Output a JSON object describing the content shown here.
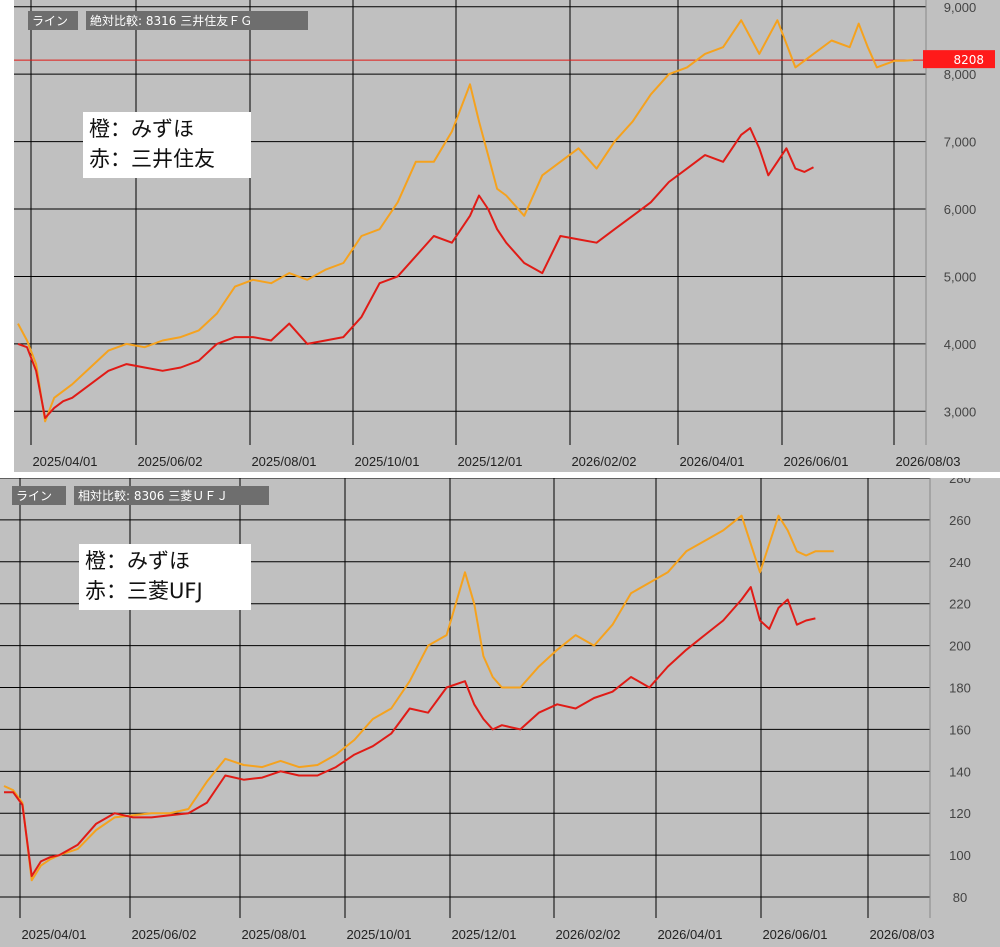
{
  "colors": {
    "background": "#c0c0c0",
    "mizuho": "#f5a21e",
    "compare": "#e01b16",
    "grid": "#000000",
    "price_line": "#e01b16",
    "price_tag": "#ff1a1a"
  },
  "chart_data": [
    {
      "type": "line",
      "header": {
        "mode": "ライン",
        "title": "絶対比較: 8316 三井住友ＦＧ"
      },
      "legend": {
        "line1": "橙：みずほ",
        "line2": "赤：三井住友"
      },
      "ylim": [
        2500,
        9100
      ],
      "yticks": [
        3000,
        4000,
        5000,
        6000,
        7000,
        8000,
        9000
      ],
      "ytick_labels": [
        "3,000",
        "4,000",
        "5,000",
        "6,000",
        "7,000",
        "8,000",
        "9,000"
      ],
      "xticks": [
        "2025/04/01",
        "2025/06/02",
        "2025/08/01",
        "2025/10/01",
        "2025/12/01",
        "2026/02/02",
        "2026/04/01",
        "2026/06/01",
        "2026/08/03"
      ],
      "current_price": 8208,
      "current_price_label": "8208",
      "x_range": [
        0,
        100
      ],
      "series": [
        {
          "name": "橙：みずほ",
          "key": "mizuho",
          "x": [
            0,
            1,
            2,
            3,
            4,
            5,
            6,
            8,
            10,
            12,
            14,
            16,
            18,
            20,
            22,
            24,
            26,
            28,
            30,
            32,
            34,
            36,
            38,
            40,
            42,
            44,
            46,
            48,
            50,
            51,
            52,
            53,
            54,
            56,
            58,
            60,
            62,
            64,
            66,
            68,
            70,
            72,
            74,
            76,
            78,
            80,
            82,
            84,
            86,
            88,
            90,
            92,
            93,
            94,
            95,
            96,
            97,
            98,
            99
          ],
          "values": [
            4300,
            4050,
            3700,
            2850,
            3200,
            3300,
            3400,
            3650,
            3900,
            4000,
            3950,
            4050,
            4100,
            4200,
            4450,
            4850,
            4950,
            4900,
            5050,
            4950,
            5100,
            5200,
            5600,
            5700,
            6100,
            6700,
            6700,
            7150,
            7850,
            7300,
            6800,
            6300,
            6200,
            5900,
            6500,
            6700,
            6900,
            6600,
            7000,
            7300,
            7700,
            8000,
            8100,
            8300,
            8400,
            8800,
            8300,
            8800,
            8100,
            8300,
            8500,
            8400,
            8750,
            8400,
            8100,
            8150,
            8200,
            8200,
            8208
          ]
        },
        {
          "name": "赤：三井住友",
          "key": "smfg",
          "x": [
            0,
            1,
            2,
            3,
            4,
            5,
            6,
            8,
            10,
            12,
            14,
            16,
            18,
            20,
            22,
            24,
            26,
            28,
            30,
            32,
            34,
            36,
            38,
            40,
            42,
            44,
            46,
            48,
            50,
            51,
            52,
            53,
            54,
            56,
            58,
            60,
            62,
            64,
            66,
            68,
            70,
            72,
            74,
            76,
            78,
            80,
            81,
            82,
            83,
            84,
            85,
            86,
            87,
            88
          ],
          "values": [
            4000,
            3950,
            3600,
            2900,
            3050,
            3150,
            3200,
            3400,
            3600,
            3700,
            3650,
            3600,
            3650,
            3750,
            4000,
            4100,
            4100,
            4050,
            4300,
            4000,
            4050,
            4100,
            4400,
            4900,
            5000,
            5300,
            5600,
            5500,
            5900,
            6200,
            6000,
            5700,
            5500,
            5200,
            5050,
            5600,
            5550,
            5500,
            5700,
            5900,
            6100,
            6400,
            6600,
            6800,
            6700,
            7100,
            7200,
            6900,
            6500,
            6700,
            6900,
            6600,
            6550,
            6620
          ]
        }
      ]
    },
    {
      "type": "line",
      "header": {
        "mode": "ライン",
        "title": "相対比較: 8306 三菱ＵＦＪ"
      },
      "legend": {
        "line1": "橙：みずほ",
        "line2": "赤：三菱UFJ"
      },
      "ylim": [
        70,
        280
      ],
      "yticks": [
        80,
        100,
        120,
        140,
        160,
        180,
        200,
        220,
        240,
        260,
        280
      ],
      "ytick_labels": [
        "80",
        "100",
        "120",
        "140",
        "160",
        "180",
        "200",
        "220",
        "240",
        "260",
        "280"
      ],
      "xticks": [
        "2025/04/01",
        "2025/06/02",
        "2025/08/01",
        "2025/10/01",
        "2025/12/01",
        "2026/02/02",
        "2026/04/01",
        "2026/06/01",
        "2026/08/03"
      ],
      "x_range": [
        0,
        100
      ],
      "series": [
        {
          "name": "橙：みずほ",
          "key": "mizuho",
          "x": [
            0,
            1,
            2,
            3,
            4,
            5,
            6,
            8,
            10,
            12,
            14,
            16,
            18,
            20,
            22,
            24,
            26,
            28,
            30,
            32,
            34,
            36,
            38,
            40,
            42,
            44,
            46,
            48,
            50,
            51,
            52,
            53,
            54,
            56,
            58,
            60,
            62,
            64,
            66,
            68,
            70,
            72,
            74,
            76,
            78,
            80,
            82,
            84,
            85,
            86,
            87,
            88,
            89,
            90
          ],
          "values": [
            133,
            131,
            125,
            88,
            95,
            98,
            100,
            103,
            112,
            118,
            119,
            120,
            120,
            122,
            135,
            146,
            143,
            142,
            145,
            142,
            143,
            148,
            155,
            165,
            170,
            183,
            200,
            205,
            235,
            220,
            195,
            185,
            180,
            180,
            190,
            198,
            205,
            200,
            210,
            225,
            230,
            235,
            245,
            250,
            255,
            262,
            235,
            262,
            255,
            245,
            243,
            245,
            245,
            245
          ]
        },
        {
          "name": "赤：三菱UFJ",
          "key": "mufg",
          "x": [
            0,
            1,
            2,
            3,
            4,
            5,
            6,
            8,
            10,
            12,
            14,
            16,
            18,
            20,
            22,
            24,
            26,
            28,
            30,
            32,
            34,
            36,
            38,
            40,
            42,
            44,
            46,
            48,
            50,
            51,
            52,
            53,
            54,
            56,
            58,
            60,
            62,
            64,
            66,
            68,
            70,
            72,
            74,
            76,
            78,
            80,
            81,
            82,
            83,
            84,
            85,
            86,
            87,
            88
          ],
          "values": [
            130,
            130,
            124,
            90,
            97,
            99,
            100,
            105,
            115,
            120,
            118,
            118,
            119,
            120,
            125,
            138,
            136,
            137,
            140,
            138,
            138,
            142,
            148,
            152,
            158,
            170,
            168,
            180,
            183,
            172,
            165,
            160,
            162,
            160,
            168,
            172,
            170,
            175,
            178,
            185,
            180,
            190,
            198,
            205,
            212,
            222,
            228,
            212,
            208,
            218,
            222,
            210,
            212,
            213
          ]
        }
      ]
    }
  ]
}
